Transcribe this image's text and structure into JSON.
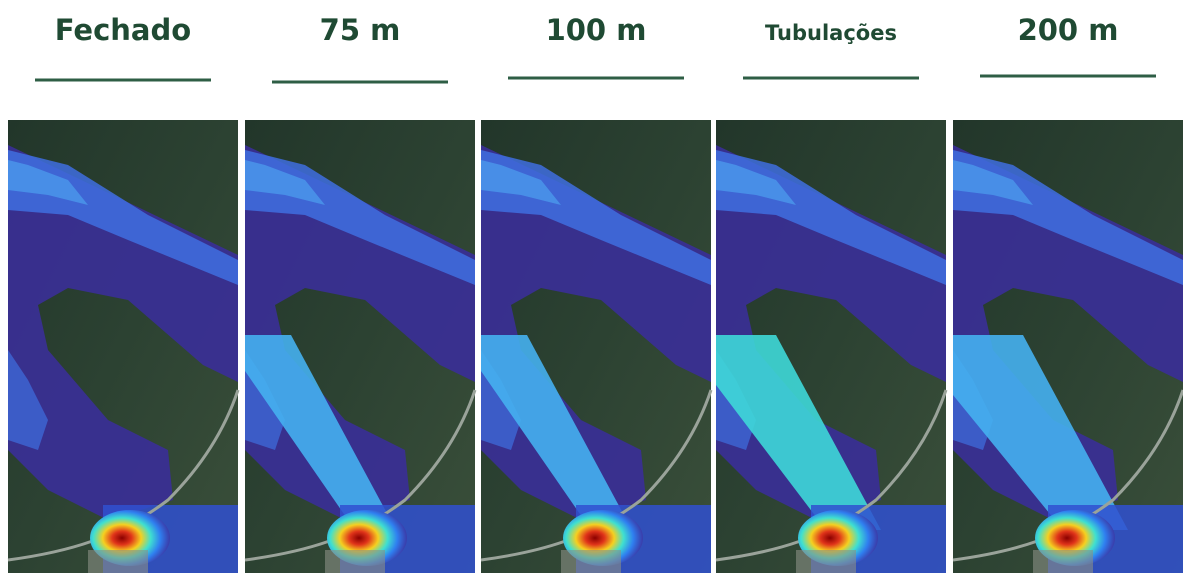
{
  "panels": [
    {
      "title": "Fechado"
    },
    {
      "title": "75 m"
    },
    {
      "title": "100 m"
    },
    {
      "title": "Tubulações"
    },
    {
      "title": "200 m"
    }
  ]
}
